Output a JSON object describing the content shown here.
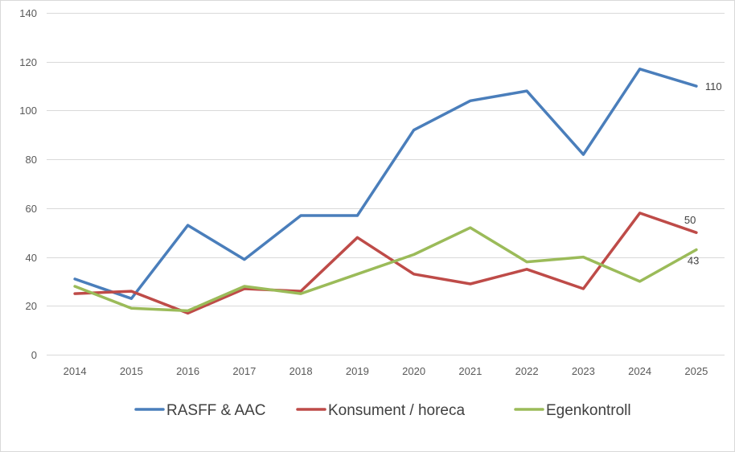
{
  "chart_data": {
    "type": "line",
    "title": "",
    "xlabel": "",
    "ylabel": "",
    "categories": [
      "2014",
      "2015",
      "2016",
      "2017",
      "2018",
      "2019",
      "2020",
      "2021",
      "2022",
      "2023",
      "2024",
      "2025"
    ],
    "ylim": [
      0,
      140
    ],
    "yticks": [
      0,
      20,
      40,
      60,
      80,
      100,
      120,
      140
    ],
    "grid": true,
    "legend_position": "bottom",
    "series": [
      {
        "name": "RASFF & AAC",
        "color": "#4a7ebb",
        "values": [
          31,
          23,
          53,
          39,
          57,
          57,
          92,
          104,
          108,
          82,
          117,
          110
        ],
        "end_label": "110"
      },
      {
        "name": "Konsument / horeca",
        "color": "#be4b48",
        "values": [
          25,
          26,
          17,
          27,
          26,
          48,
          33,
          29,
          35,
          27,
          58,
          50
        ],
        "end_label": "50"
      },
      {
        "name": "Egenkontroll",
        "color": "#9bbb59",
        "values": [
          28,
          19,
          18,
          28,
          25,
          33,
          41,
          52,
          38,
          40,
          30,
          43
        ],
        "end_label": "43"
      }
    ]
  }
}
